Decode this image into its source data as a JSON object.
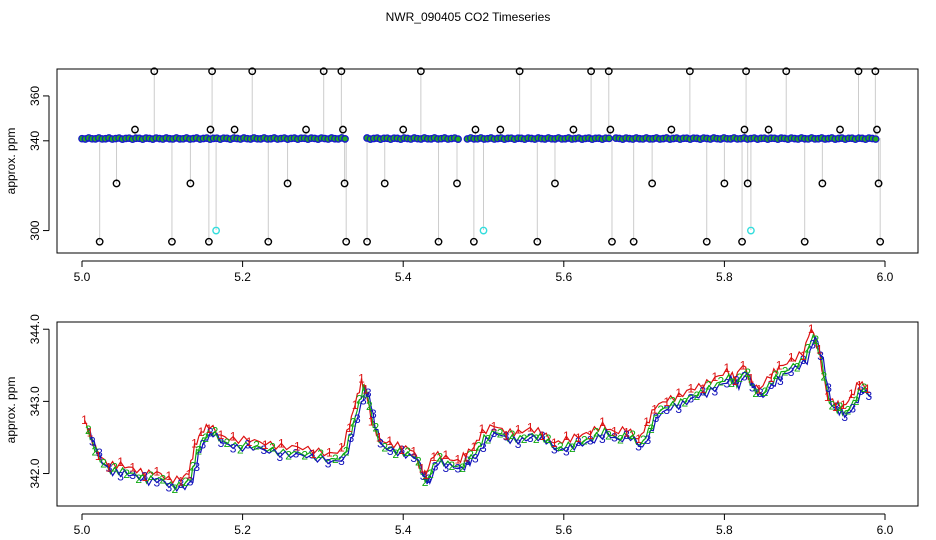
{
  "title": "NWR_090405  CO2 Timeseries",
  "chart_data": [
    {
      "type": "scatter",
      "ylabel": "approx. ppm",
      "xlim": [
        5.0,
        6.0
      ],
      "ylim": [
        290,
        372
      ],
      "x_ticks": [
        "5.0",
        "5.2",
        "5.4",
        "5.6",
        "5.8",
        "6.0"
      ],
      "y_ticks": [
        "300",
        "340",
        "360"
      ],
      "y_tick_values": [
        300,
        340,
        360
      ],
      "baseline_ppm": 341,
      "baseline_segments": [
        [
          5.0,
          5.33
        ],
        [
          5.355,
          5.47
        ],
        [
          5.48,
          5.66
        ],
        [
          5.665,
          5.99
        ]
      ],
      "spikes": [
        {
          "x": 5.022,
          "y": 295
        },
        {
          "x": 5.043,
          "y": 321
        },
        {
          "x": 5.066,
          "y": 345
        },
        {
          "x": 5.09,
          "y": 371
        },
        {
          "x": 5.112,
          "y": 295
        },
        {
          "x": 5.135,
          "y": 321
        },
        {
          "x": 5.158,
          "y": 295
        },
        {
          "x": 5.16,
          "y": 345
        },
        {
          "x": 5.162,
          "y": 371
        },
        {
          "x": 5.19,
          "y": 345
        },
        {
          "x": 5.212,
          "y": 371
        },
        {
          "x": 5.232,
          "y": 295
        },
        {
          "x": 5.256,
          "y": 321
        },
        {
          "x": 5.279,
          "y": 345
        },
        {
          "x": 5.301,
          "y": 371
        },
        {
          "x": 5.323,
          "y": 371
        },
        {
          "x": 5.325,
          "y": 345
        },
        {
          "x": 5.327,
          "y": 321
        },
        {
          "x": 5.329,
          "y": 295
        },
        {
          "x": 5.355,
          "y": 295
        },
        {
          "x": 5.377,
          "y": 321
        },
        {
          "x": 5.4,
          "y": 345
        },
        {
          "x": 5.422,
          "y": 371
        },
        {
          "x": 5.444,
          "y": 295
        },
        {
          "x": 5.467,
          "y": 321
        },
        {
          "x": 5.488,
          "y": 295
        },
        {
          "x": 5.49,
          "y": 345
        },
        {
          "x": 5.521,
          "y": 345
        },
        {
          "x": 5.545,
          "y": 371
        },
        {
          "x": 5.567,
          "y": 295
        },
        {
          "x": 5.589,
          "y": 321
        },
        {
          "x": 5.612,
          "y": 345
        },
        {
          "x": 5.634,
          "y": 371
        },
        {
          "x": 5.656,
          "y": 371
        },
        {
          "x": 5.658,
          "y": 345
        },
        {
          "x": 5.66,
          "y": 295
        },
        {
          "x": 5.687,
          "y": 295
        },
        {
          "x": 5.71,
          "y": 321
        },
        {
          "x": 5.734,
          "y": 345
        },
        {
          "x": 5.757,
          "y": 371
        },
        {
          "x": 5.778,
          "y": 295
        },
        {
          "x": 5.8,
          "y": 321
        },
        {
          "x": 5.822,
          "y": 295
        },
        {
          "x": 5.825,
          "y": 345
        },
        {
          "x": 5.827,
          "y": 371
        },
        {
          "x": 5.829,
          "y": 321
        },
        {
          "x": 5.855,
          "y": 345
        },
        {
          "x": 5.877,
          "y": 371
        },
        {
          "x": 5.9,
          "y": 295
        },
        {
          "x": 5.922,
          "y": 321
        },
        {
          "x": 5.944,
          "y": 345
        },
        {
          "x": 5.967,
          "y": 371
        },
        {
          "x": 5.988,
          "y": 371
        },
        {
          "x": 5.99,
          "y": 345
        },
        {
          "x": 5.992,
          "y": 321
        },
        {
          "x": 5.994,
          "y": 295
        }
      ],
      "cyan_points": [
        {
          "x": 5.167,
          "y": 300
        },
        {
          "x": 5.5,
          "y": 300
        },
        {
          "x": 5.833,
          "y": 300
        }
      ],
      "colors": {
        "point": "#1818cc",
        "fill": "#22aa22",
        "spike": "#000000",
        "cyan": "#33dddd",
        "line": "#999999"
      }
    },
    {
      "type": "line",
      "ylabel": "approx. ppm",
      "xlim": [
        5.0,
        6.0
      ],
      "ylim": [
        341.55,
        344.1
      ],
      "x_ticks": [
        "5.0",
        "5.2",
        "5.4",
        "5.6",
        "5.8",
        "6.0"
      ],
      "y_ticks": [
        "342.0",
        "343.0",
        "344.0"
      ],
      "y_tick_values": [
        342.0,
        343.0,
        344.0
      ],
      "marker_labels": [
        "1",
        "2",
        "3"
      ],
      "marker_colors": [
        "#dd1111",
        "#11aa11",
        "#1111bb"
      ],
      "x": [
        5.005,
        5.012,
        5.022,
        5.035,
        5.05,
        5.065,
        5.08,
        5.095,
        5.11,
        5.125,
        5.135,
        5.142,
        5.15,
        5.16,
        5.175,
        5.19,
        5.21,
        5.23,
        5.25,
        5.27,
        5.29,
        5.31,
        5.325,
        5.335,
        5.342,
        5.35,
        5.355,
        5.362,
        5.372,
        5.385,
        5.4,
        5.415,
        5.425,
        5.43,
        5.44,
        5.455,
        5.47,
        5.48,
        5.49,
        5.5,
        5.515,
        5.53,
        5.545,
        5.56,
        5.575,
        5.59,
        5.605,
        5.62,
        5.635,
        5.65,
        5.665,
        5.68,
        5.695,
        5.705,
        5.715,
        5.73,
        5.745,
        5.76,
        5.775,
        5.79,
        5.805,
        5.815,
        5.825,
        5.835,
        5.845,
        5.86,
        5.87,
        5.885,
        5.9,
        5.91,
        5.92,
        5.93,
        5.94,
        5.95,
        5.96,
        5.97,
        5.98
      ],
      "y": [
        342.67,
        342.45,
        342.2,
        342.05,
        342.05,
        342.0,
        341.93,
        341.95,
        341.85,
        341.85,
        341.95,
        342.3,
        342.5,
        342.6,
        342.45,
        342.4,
        342.4,
        342.35,
        342.3,
        342.3,
        342.25,
        342.2,
        342.25,
        342.6,
        342.9,
        343.2,
        343.1,
        342.7,
        342.4,
        342.35,
        342.3,
        342.25,
        341.95,
        341.92,
        342.2,
        342.15,
        342.1,
        342.2,
        342.3,
        342.5,
        342.6,
        342.5,
        342.5,
        342.55,
        342.5,
        342.35,
        342.4,
        342.45,
        342.5,
        342.6,
        342.5,
        342.55,
        342.4,
        342.6,
        342.85,
        342.95,
        343.0,
        343.1,
        343.15,
        343.25,
        343.35,
        343.25,
        343.45,
        343.2,
        343.1,
        343.3,
        343.4,
        343.5,
        343.6,
        343.95,
        343.6,
        343.0,
        342.9,
        342.85,
        343.0,
        343.2,
        343.1
      ]
    }
  ]
}
